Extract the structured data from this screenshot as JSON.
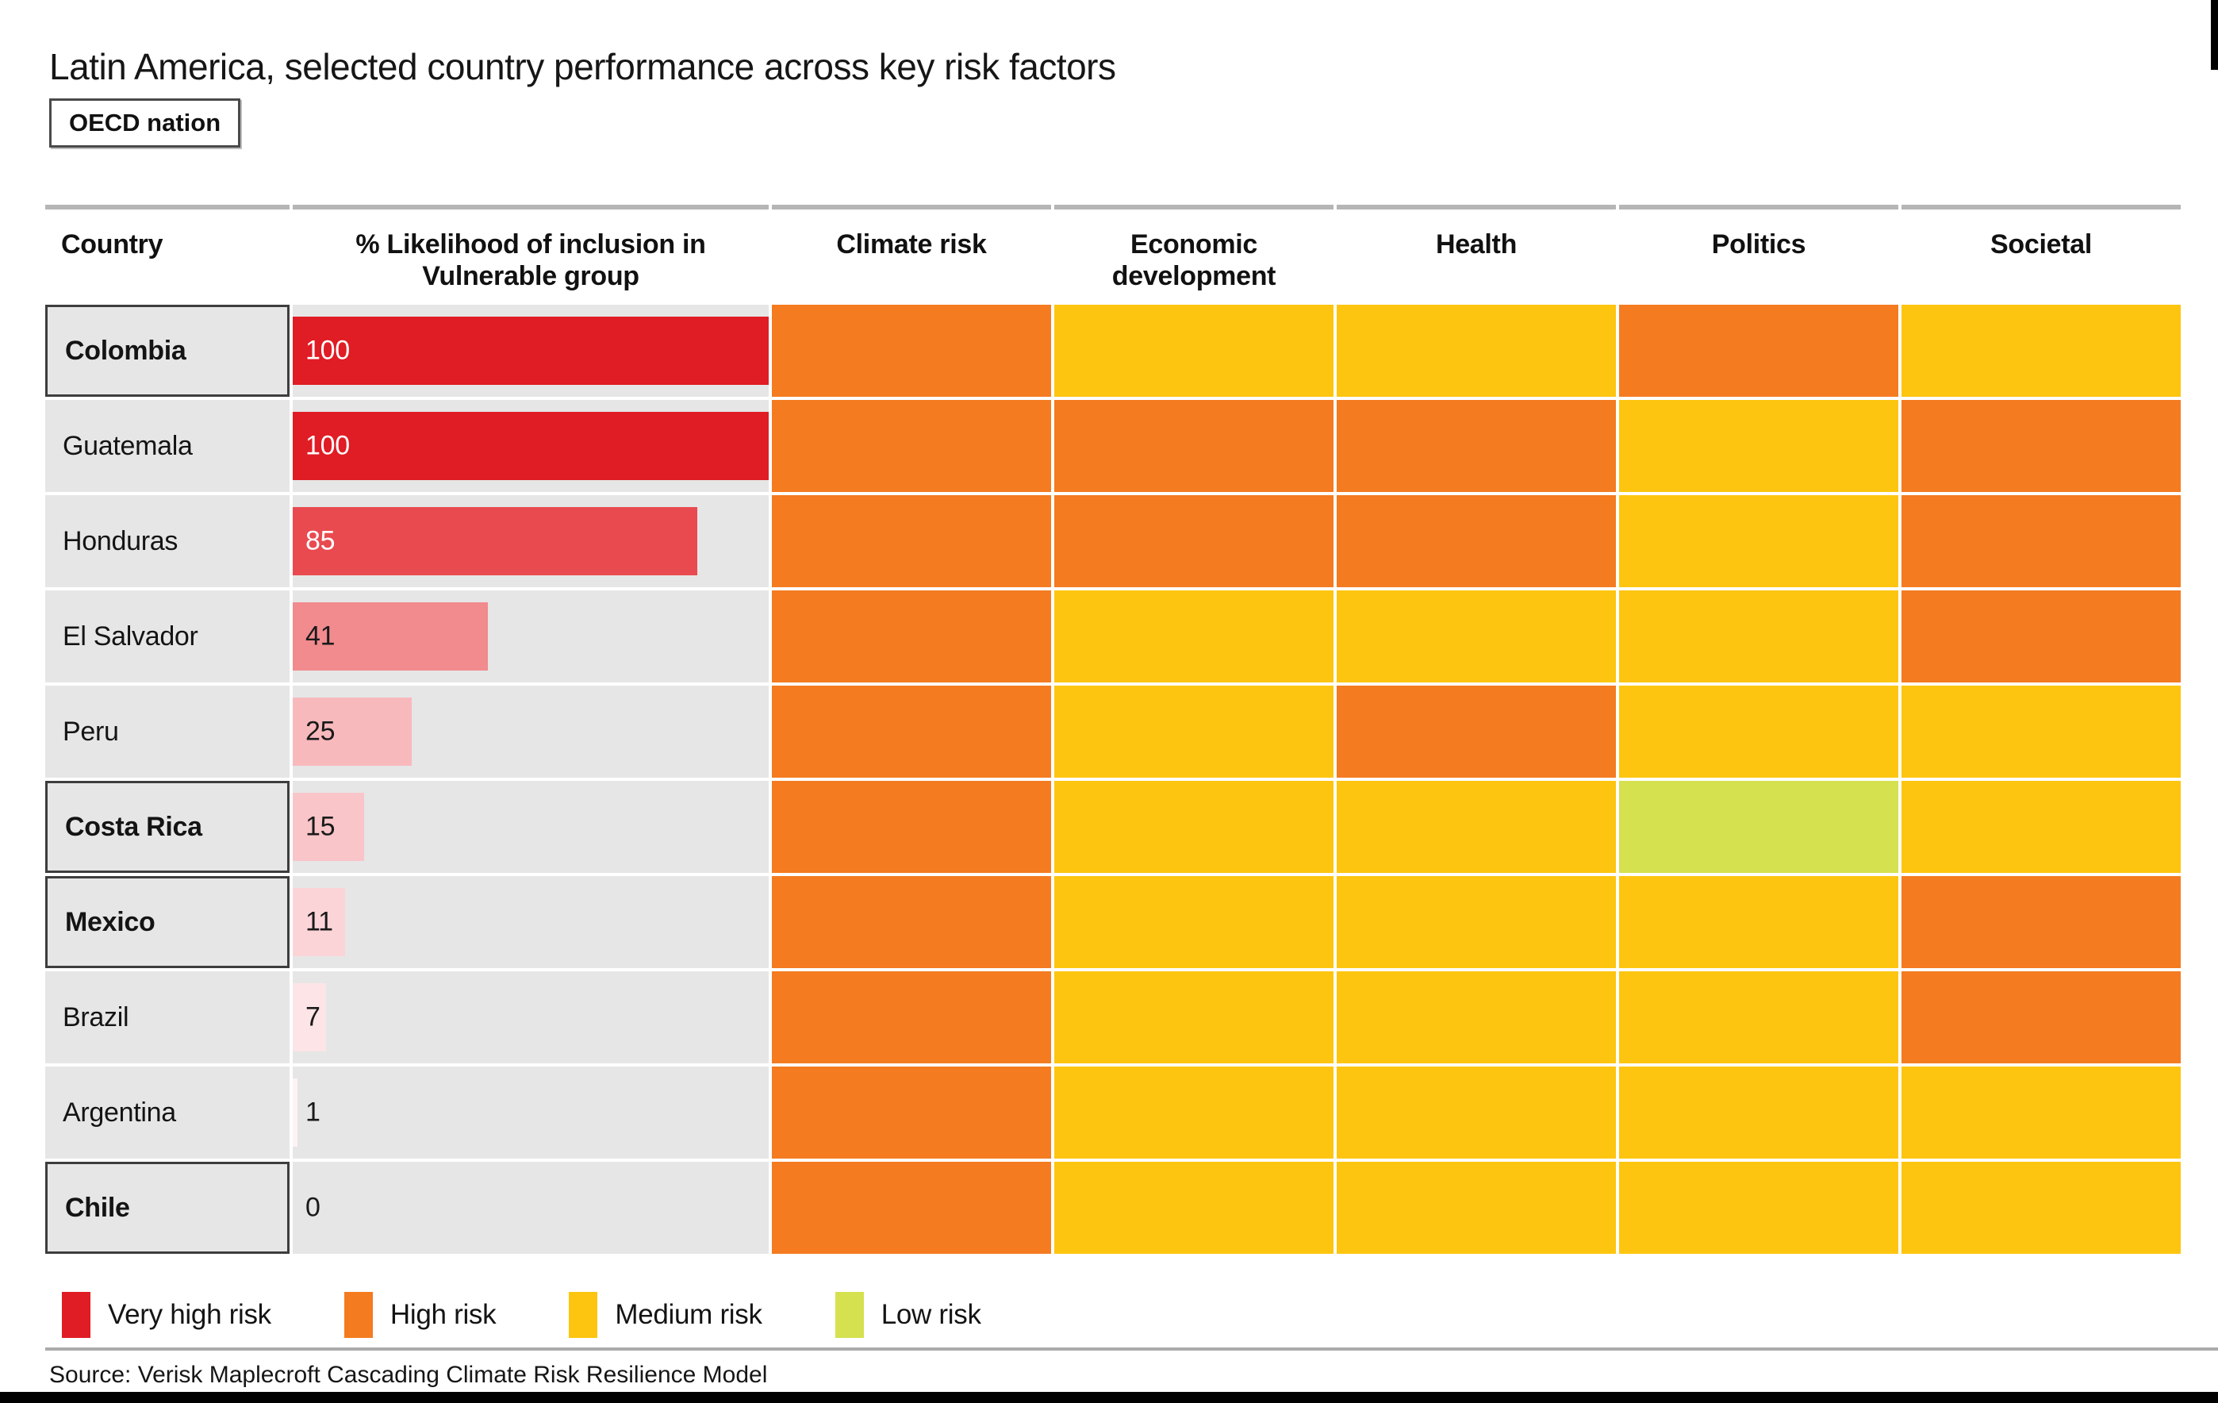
{
  "title": "Latin America, selected country performance across key risk factors",
  "oecd_tag_label": "OECD nation",
  "source": "Source: Verisk Maplecroft Cascading Climate Risk Resilience Model",
  "header": {
    "country": "Country",
    "likelihood_line1": "% Likelihood of inclusion in",
    "likelihood_line2": "Vulnerable group",
    "risk_columns": [
      "Climate risk",
      "Economic development",
      "Health",
      "Politics",
      "Societal"
    ]
  },
  "legend": [
    {
      "label": "Very high risk",
      "color": "#e01c24"
    },
    {
      "label": "High risk",
      "color": "#f47b20"
    },
    {
      "label": "Medium risk",
      "color": "#fdc50f"
    },
    {
      "label": "Low risk",
      "color": "#d5e14e"
    }
  ],
  "chart_data": {
    "type": "heatmap",
    "title": "Latin America, selected country performance across key risk factors",
    "bar_column": {
      "label": "% Likelihood of inclusion in Vulnerable group",
      "range": [
        0,
        100
      ]
    },
    "risk_columns": [
      "Climate risk",
      "Economic development",
      "Health",
      "Politics",
      "Societal"
    ],
    "risk_scale_labels": [
      "Very high risk",
      "High risk",
      "Medium risk",
      "Low risk"
    ],
    "risk_colors": {
      "very_high": "#e01c24",
      "high": "#f47b20",
      "medium": "#fdc50f",
      "low": "#d5e14e"
    },
    "row_background": "#e6e6e6",
    "rows": [
      {
        "country": "Colombia",
        "oecd": true,
        "likelihood": 100,
        "bar_color": "#e01c24",
        "label_color": "#ffffff",
        "risks": [
          "high",
          "medium",
          "medium",
          "high",
          "medium"
        ]
      },
      {
        "country": "Guatemala",
        "oecd": false,
        "likelihood": 100,
        "bar_color": "#e01c24",
        "label_color": "#ffffff",
        "risks": [
          "high",
          "high",
          "high",
          "medium",
          "high"
        ]
      },
      {
        "country": "Honduras",
        "oecd": false,
        "likelihood": 85,
        "bar_color": "#e94a4f",
        "label_color": "#ffffff",
        "risks": [
          "high",
          "high",
          "high",
          "medium",
          "high"
        ]
      },
      {
        "country": "El Salvador",
        "oecd": false,
        "likelihood": 41,
        "bar_color": "#f18b8e",
        "label_color": "#1a1a1a",
        "risks": [
          "high",
          "medium",
          "medium",
          "medium",
          "high"
        ]
      },
      {
        "country": "Peru",
        "oecd": false,
        "likelihood": 25,
        "bar_color": "#f8b9bd",
        "label_color": "#1a1a1a",
        "risks": [
          "high",
          "medium",
          "high",
          "medium",
          "medium"
        ]
      },
      {
        "country": "Costa Rica",
        "oecd": true,
        "likelihood": 15,
        "bar_color": "#f9c5c9",
        "label_color": "#1a1a1a",
        "risks": [
          "high",
          "medium",
          "medium",
          "low",
          "medium"
        ]
      },
      {
        "country": "Mexico",
        "oecd": true,
        "likelihood": 11,
        "bar_color": "#fbd4d8",
        "label_color": "#1a1a1a",
        "risks": [
          "high",
          "medium",
          "medium",
          "medium",
          "high"
        ]
      },
      {
        "country": "Brazil",
        "oecd": false,
        "likelihood": 7,
        "bar_color": "#fde4e6",
        "label_color": "#1a1a1a",
        "risks": [
          "high",
          "medium",
          "medium",
          "medium",
          "high"
        ]
      },
      {
        "country": "Argentina",
        "oecd": false,
        "likelihood": 1,
        "bar_color": "#fef3f4",
        "label_color": "#1a1a1a",
        "risks": [
          "high",
          "medium",
          "medium",
          "medium",
          "medium"
        ]
      },
      {
        "country": "Chile",
        "oecd": true,
        "likelihood": 0,
        "bar_color": "transparent",
        "label_color": "#1a1a1a",
        "risks": [
          "high",
          "medium",
          "medium",
          "medium",
          "medium"
        ]
      }
    ]
  }
}
